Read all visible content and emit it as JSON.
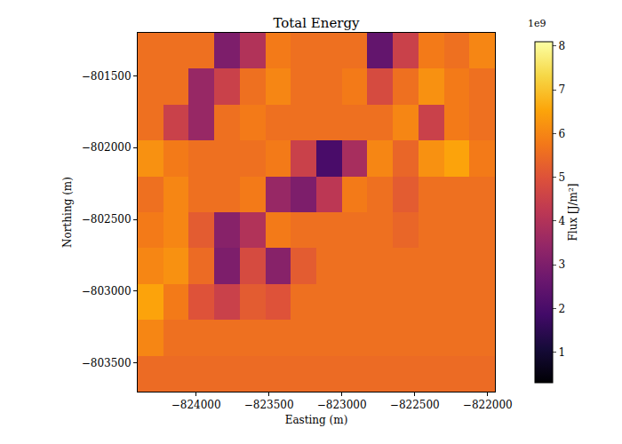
{
  "chart_data": {
    "type": "heatmap",
    "title": "Total Energy",
    "x_label": "Easting (m)",
    "y_label": "Northing (m)",
    "xlim": [
      -824400,
      -821950
    ],
    "ylim": [
      -803700,
      -801200
    ],
    "xticks": [
      {
        "value": -824000,
        "label": "−824000"
      },
      {
        "value": -823500,
        "label": "−823500"
      },
      {
        "value": -823000,
        "label": "−823000"
      },
      {
        "value": -822500,
        "label": "−822500"
      },
      {
        "value": -822000,
        "label": "−822000"
      }
    ],
    "yticks": [
      {
        "value": -801500,
        "label": "−801500"
      },
      {
        "value": -802000,
        "label": "−802000"
      },
      {
        "value": -802500,
        "label": "−802500"
      },
      {
        "value": -803000,
        "label": "−803000"
      },
      {
        "value": -803500,
        "label": "−803500"
      }
    ],
    "x": [
      -824312.5,
      -824137.5,
      -823962.5,
      -823787.5,
      -823612.5,
      -823437.5,
      -823262.5,
      -823087.5,
      -822912.5,
      -822737.5,
      -822562.5,
      -822387.5,
      -822212.5,
      -822037.5
    ],
    "y": [
      -803575,
      -803325,
      -803075,
      -802825,
      -802575,
      -802325,
      -802075,
      -801825,
      -801575,
      -801325
    ],
    "z": [
      [
        5500000000,
        5500000000,
        5500000000,
        5500000000,
        5500000000,
        5500000000,
        5500000000,
        5500000000,
        5500000000,
        5500000000,
        5500000000,
        5500000000,
        5500000000,
        5500000000
      ],
      [
        6000000000,
        5600000000,
        5600000000,
        5600000000,
        5600000000,
        5600000000,
        5600000000,
        5600000000,
        5600000000,
        5600000000,
        5600000000,
        5600000000,
        5600000000,
        5600000000
      ],
      [
        6500000000,
        5800000000,
        5000000000,
        4500000000,
        5200000000,
        5000000000,
        5600000000,
        5600000000,
        5600000000,
        5600000000,
        5600000000,
        5600000000,
        5600000000,
        5600000000
      ],
      [
        6000000000,
        6200000000,
        5500000000,
        3000000000,
        4800000000,
        3200000000,
        5200000000,
        5600000000,
        5600000000,
        5600000000,
        5600000000,
        5600000000,
        5600000000,
        5600000000
      ],
      [
        5800000000,
        6000000000,
        5200000000,
        3200000000,
        4000000000,
        5800000000,
        5600000000,
        5600000000,
        5600000000,
        5600000000,
        5400000000,
        5600000000,
        5600000000,
        5600000000
      ],
      [
        5600000000,
        6000000000,
        5600000000,
        5600000000,
        5800000000,
        3500000000,
        3000000000,
        4200000000,
        5800000000,
        5600000000,
        5200000000,
        5600000000,
        5600000000,
        5600000000
      ],
      [
        6200000000,
        5800000000,
        5600000000,
        5600000000,
        5600000000,
        5800000000,
        4500000000,
        2000000000,
        3800000000,
        6000000000,
        5400000000,
        6200000000,
        6500000000,
        5800000000
      ],
      [
        5600000000,
        4500000000,
        3500000000,
        5600000000,
        5800000000,
        5600000000,
        5600000000,
        5600000000,
        5600000000,
        5600000000,
        6000000000,
        4500000000,
        5800000000,
        5600000000
      ],
      [
        5600000000,
        5600000000,
        3500000000,
        4500000000,
        5600000000,
        6000000000,
        5600000000,
        5600000000,
        5800000000,
        4800000000,
        5600000000,
        6200000000,
        5800000000,
        5600000000
      ],
      [
        5600000000,
        5600000000,
        5600000000,
        3000000000,
        4000000000,
        5800000000,
        5600000000,
        5600000000,
        5600000000,
        2500000000,
        4500000000,
        5800000000,
        5600000000,
        6000000000
      ]
    ],
    "colorbar": {
      "title": "Flux [J/m²]",
      "offset_label": "1e9",
      "range": [
        300000000,
        8100000000
      ],
      "ticks": [
        {
          "value": 1000000000,
          "label": "1"
        },
        {
          "value": 2000000000,
          "label": "2"
        },
        {
          "value": 3000000000,
          "label": "3"
        },
        {
          "value": 4000000000,
          "label": "4"
        },
        {
          "value": 5000000000,
          "label": "5"
        },
        {
          "value": 6000000000,
          "label": "6"
        },
        {
          "value": 7000000000,
          "label": "7"
        },
        {
          "value": 8000000000,
          "label": "8"
        }
      ]
    },
    "grid": false
  }
}
